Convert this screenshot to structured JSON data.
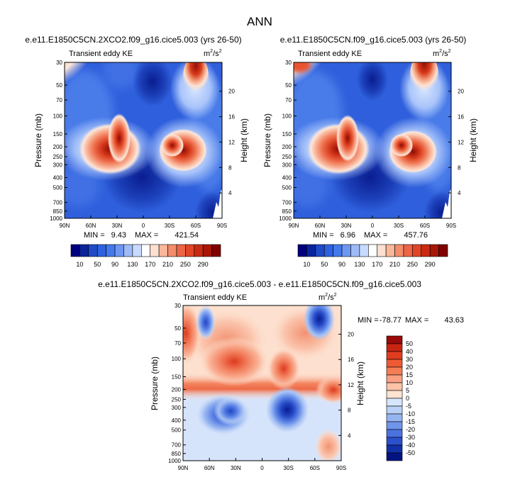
{
  "page_title": "ANN",
  "panels": [
    {
      "title": "e.e11.E1850C5CN.2XCO2.f09_g16.cice5.003 (yrs 26-50)",
      "field_label": "Transient eddy KE",
      "units_base": "m",
      "units_exp1": "2",
      "units_mid": "/s",
      "units_exp2": "2",
      "min_label": "MIN =",
      "min_value": "9.43",
      "max_label": "MAX =",
      "max_value": "421.54"
    },
    {
      "title": "e.e11.E1850C5CN.f09_g16.cice5.003 (yrs 26-50)",
      "field_label": "Transient eddy KE",
      "units_base": "m",
      "units_exp1": "2",
      "units_mid": "/s",
      "units_exp2": "2",
      "min_label": "MIN =",
      "min_value": "6.96",
      "max_label": "MAX =",
      "max_value": "457.76"
    },
    {
      "title": "e.e11.E1850C5CN.2XCO2.f09_g16.cice5.003 - e.e11.E1850C5CN.f09_g16.cice5.003",
      "field_label": "Transient eddy KE",
      "units_base": "m",
      "units_exp1": "2",
      "units_mid": "/s",
      "units_exp2": "2",
      "min_label": "MIN =",
      "min_value": "-78.77",
      "max_label": "MAX =",
      "max_value": "43.63"
    }
  ],
  "axes": {
    "ylabel": "Pressure (mb)",
    "ylabel_right": "Height (km)",
    "pressure_ticks": [
      "30",
      "50",
      "70",
      "100",
      "150",
      "200",
      "250",
      "300",
      "400",
      "500",
      "700",
      "850",
      "1000"
    ],
    "height_ticks": [
      "20",
      "16",
      "12",
      "8",
      "4"
    ],
    "lat_ticks": [
      "90N",
      "60N",
      "30N",
      "0",
      "30S",
      "60S",
      "90S"
    ]
  },
  "colorbar_abs": {
    "labels": [
      "10",
      "50",
      "90",
      "130",
      "170",
      "210",
      "250",
      "290"
    ],
    "colors": [
      "#00007f",
      "#0a249c",
      "#1f4bc7",
      "#2e62e0",
      "#4479ec",
      "#6e97f3",
      "#9ebbf8",
      "#c8daff",
      "#ffffff",
      "#fde0cf",
      "#f9b79b",
      "#f38d6c",
      "#ec6546",
      "#e04526",
      "#c92b12",
      "#a81608",
      "#800000"
    ]
  },
  "colorbar_diff": {
    "labels": [
      "50",
      "40",
      "30",
      "20",
      "15",
      "10",
      "5",
      "0",
      "-5",
      "-10",
      "-15",
      "-20",
      "-30",
      "-40",
      "-50"
    ],
    "colors": [
      "#9a0a0a",
      "#c82412",
      "#e23c20",
      "#ef5a34",
      "#f57d55",
      "#f9a182",
      "#fcc3a8",
      "#fde3d2",
      "#d7e6fa",
      "#b9d1f6",
      "#94b5f0",
      "#6f95ea",
      "#4a73e0",
      "#2b50cc",
      "#1330a8",
      "#031482"
    ]
  },
  "chart_data": [
    {
      "type": "heatmap",
      "title": "e.e11.E1850C5CN.2XCO2.f09_g16.cice5.003 (yrs 26-50)",
      "variable": "Transient eddy KE",
      "units": "m2/s2",
      "x": "latitude 90N to 90S",
      "y": "pressure 30 to 1000 mb",
      "min": 9.43,
      "max": 421.54,
      "features": [
        {
          "lat": 28,
          "p": 200,
          "value": 290
        },
        {
          "lat": -50,
          "p": 250,
          "value": 290
        },
        {
          "lat": -36,
          "p": 200,
          "value": 230
        },
        {
          "lat": -55,
          "p": 30,
          "value": 290
        },
        {
          "lat": 90,
          "p": 30,
          "value": 210
        }
      ]
    },
    {
      "type": "heatmap",
      "title": "e.e11.E1850C5CN.f09_g16.cice5.003 (yrs 26-50)",
      "variable": "Transient eddy KE",
      "units": "m2/s2",
      "x": "latitude 90N to 90S",
      "y": "pressure 30 to 1000 mb",
      "min": 6.96,
      "max": 457.76,
      "features": [
        {
          "lat": 30,
          "p": 200,
          "value": 290
        },
        {
          "lat": -50,
          "p": 250,
          "value": 290
        },
        {
          "lat": -36,
          "p": 200,
          "value": 230
        },
        {
          "lat": -52,
          "p": 30,
          "value": 290
        },
        {
          "lat": 88,
          "p": 30,
          "value": 290
        }
      ]
    },
    {
      "type": "heatmap",
      "title": "e.e11.E1850C5CN.2XCO2.f09_g16.cice5.003 - e.e11.E1850C5CN.f09_g16.cice5.003",
      "variable": "Transient eddy KE",
      "units": "m2/s2",
      "x": "latitude 90N to 90S",
      "y": "pressure 30 to 1000 mb",
      "min": -78.77,
      "max": 43.63,
      "features": [
        {
          "lat": -50,
          "p": 30,
          "value": -50
        },
        {
          "lat": 68,
          "p": 40,
          "value": -30
        },
        {
          "lat": 35,
          "p": 350,
          "value": -15
        },
        {
          "lat": -28,
          "p": 350,
          "value": -20
        },
        {
          "lat": 82,
          "p": 60,
          "value": 30
        },
        {
          "lat": 18,
          "p": 120,
          "value": 20
        },
        {
          "lat": -70,
          "p": 200,
          "value": 20
        }
      ]
    }
  ]
}
